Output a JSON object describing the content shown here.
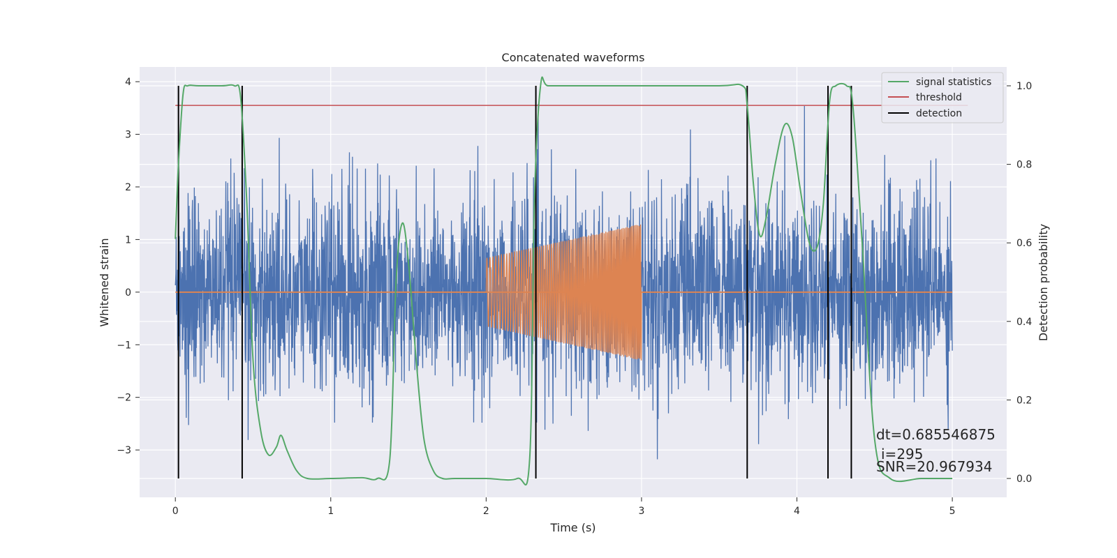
{
  "chart_data": {
    "type": "line",
    "title": "Concatenated waveforms",
    "xlabel": "Time (s)",
    "ylabel": "Whitened strain",
    "y2label": "Detection probability",
    "xlim": [
      -0.23,
      5.35
    ],
    "ylim": [
      -3.9,
      4.28
    ],
    "y2lim": [
      -0.048,
      1.048
    ],
    "x_ticks": [
      0,
      1,
      2,
      3,
      4,
      5
    ],
    "y_ticks": [
      -3,
      -2,
      -1,
      0,
      1,
      2,
      3,
      4
    ],
    "y2_ticks": [
      0.0,
      0.2,
      0.4,
      0.6,
      0.8,
      1.0
    ],
    "y2_tick_labels": [
      "0.0",
      "0.2",
      "0.4",
      "0.6",
      "0.8",
      "1.0"
    ],
    "grid": true,
    "legend_position": "top-right",
    "legend": [
      "signal statistics",
      "threshold",
      "detection"
    ],
    "colors": {
      "strain": "#4c72b0",
      "injection": "#dd8452",
      "signal_statistics": "#55a868",
      "threshold": "#c44e52",
      "detection": "#000000",
      "plot_bg": "#eaeaf2",
      "grid": "#ffffff"
    },
    "strain": {
      "x_range": [
        0,
        5
      ],
      "amplitude_typical": 1.1,
      "amplitude_peak": 3.9
    },
    "injection": {
      "x_range": [
        2,
        3
      ],
      "amplitude_start": 0.65,
      "amplitude_end": 1.3
    },
    "signal_statistics": {
      "x": [
        0,
        0.02,
        0.05,
        0.08,
        0.15,
        0.3,
        0.38,
        0.42,
        0.46,
        0.5,
        0.55,
        0.6,
        0.65,
        0.68,
        0.72,
        0.78,
        0.85,
        1.0,
        1.2,
        1.3,
        1.38,
        1.42,
        1.46,
        1.5,
        1.55,
        1.6,
        1.66,
        1.72,
        1.8,
        2.0,
        2.2,
        2.28,
        2.31,
        2.35,
        2.4,
        2.6,
        3.0,
        3.5,
        3.65,
        3.68,
        3.72,
        3.76,
        3.8,
        3.86,
        3.92,
        3.97,
        4.02,
        4.08,
        4.13,
        4.17,
        4.21,
        4.25,
        4.32,
        4.36,
        4.42,
        4.5,
        4.6,
        4.8,
        5.0
      ],
      "y": [
        0.61,
        0.8,
        0.98,
        1.0,
        1.0,
        1.0,
        1.0,
        0.97,
        0.7,
        0.3,
        0.12,
        0.06,
        0.08,
        0.11,
        0.07,
        0.02,
        0.0,
        0.0,
        0.002,
        0.0,
        0.05,
        0.5,
        0.65,
        0.55,
        0.3,
        0.1,
        0.02,
        0.0,
        0.0,
        0.0,
        0.0,
        0.05,
        0.7,
        1.0,
        1.0,
        1.0,
        1.0,
        1.0,
        1.0,
        0.95,
        0.75,
        0.62,
        0.66,
        0.8,
        0.9,
        0.87,
        0.74,
        0.6,
        0.59,
        0.7,
        0.96,
        1.0,
        1.0,
        0.95,
        0.6,
        0.1,
        0.0,
        0.0,
        0.0
      ]
    },
    "threshold": {
      "x_range": [
        0,
        5.1
      ],
      "value": 0.95
    },
    "detections": [
      0.02,
      0.43,
      2.32,
      3.68,
      4.2,
      4.35
    ],
    "annotations": [
      "dt=0.685546875",
      "i=295",
      "SNR=20.967934"
    ]
  }
}
